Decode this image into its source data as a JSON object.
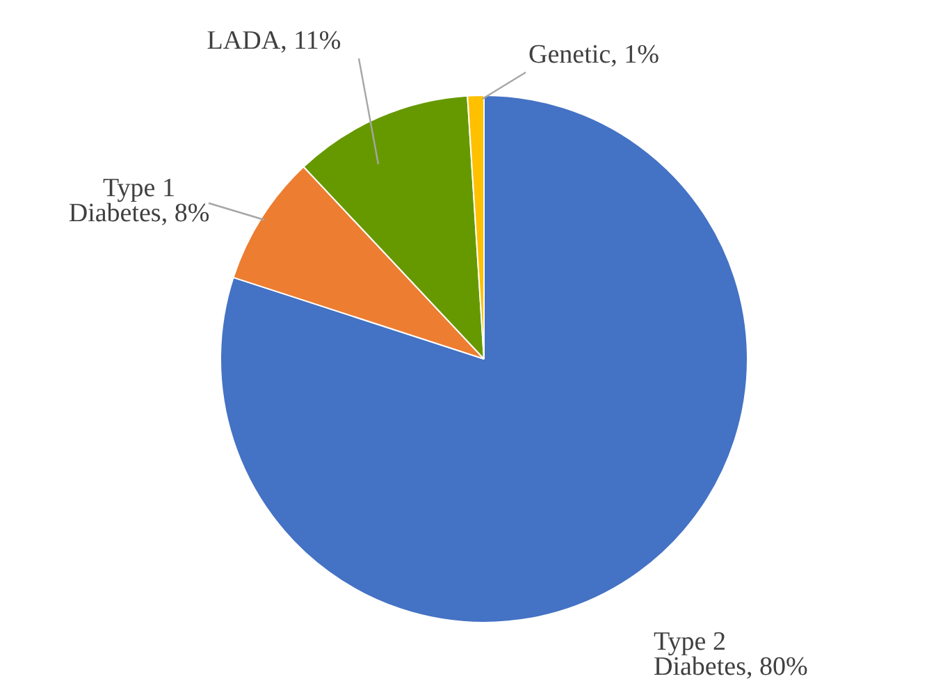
{
  "chart_data": {
    "type": "pie",
    "categories": [
      "Type 2 Diabetes",
      "Type 1 Diabetes",
      "LADA",
      "Genetic"
    ],
    "values": [
      80,
      8,
      11,
      1
    ],
    "value_labels": [
      "80%",
      "8%",
      "11%",
      "1%"
    ],
    "colors": [
      "#4472c4",
      "#ed7d31",
      "#669900",
      "#ffc000"
    ],
    "legend": false
  }
}
